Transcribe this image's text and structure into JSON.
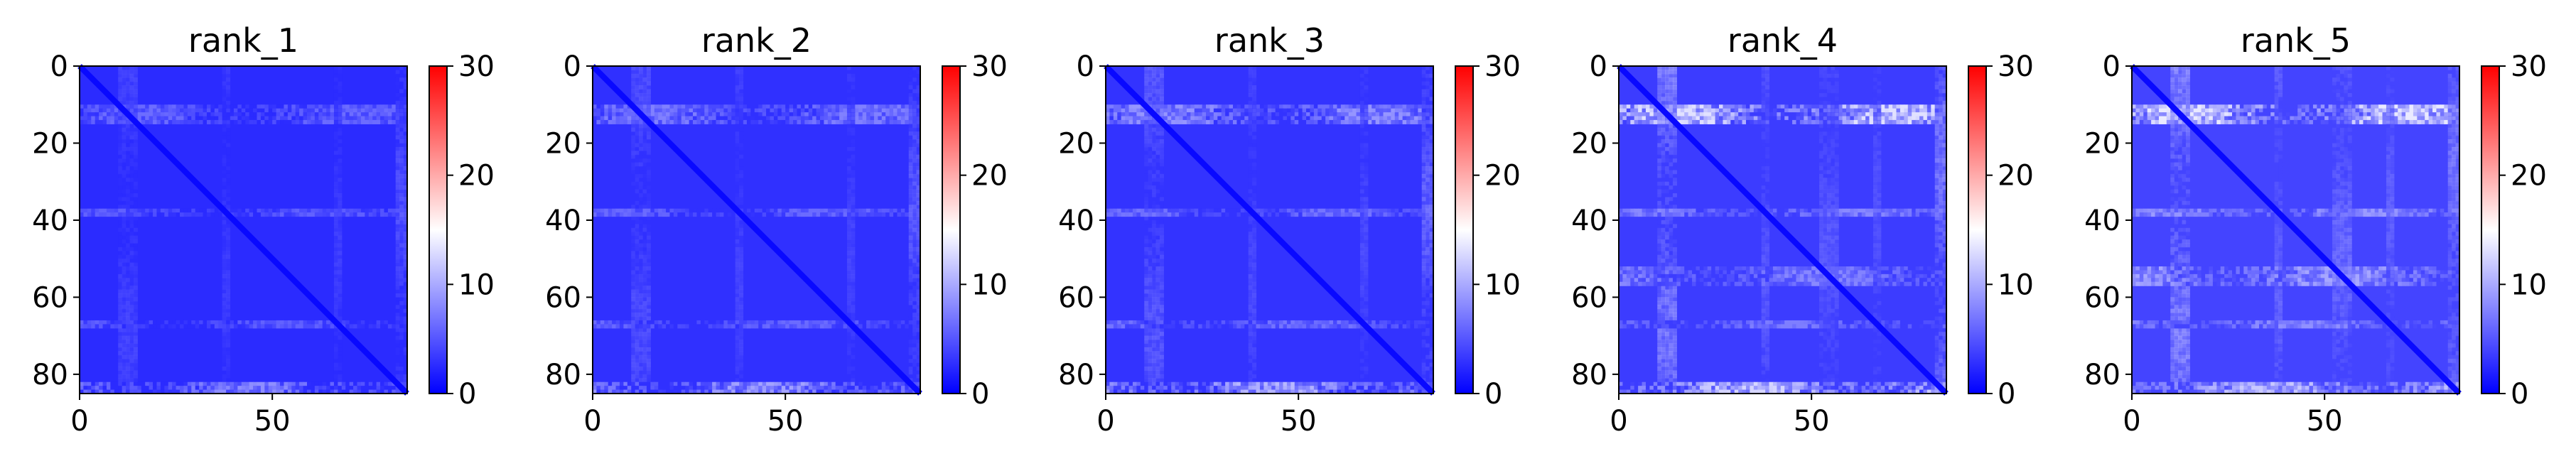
{
  "figure": {
    "colormap": "bwr",
    "colors": {
      "low": "#0000ff",
      "mid": "#ffffff",
      "high": "#ff0000"
    }
  },
  "chart_data": [
    {
      "type": "heatmap",
      "title": "rank_1",
      "matrix_size": 85,
      "xlabel": "",
      "ylabel": "",
      "xlim": [
        0,
        85
      ],
      "ylim": [
        85,
        0
      ],
      "xticks": [
        0,
        50
      ],
      "yticks": [
        0,
        20,
        40,
        60,
        80
      ],
      "xtick_labels": [
        "0",
        "50"
      ],
      "ytick_labels": [
        "0",
        "20",
        "40",
        "60",
        "80"
      ],
      "colorbar": {
        "min": 0,
        "max": 30,
        "ticks": [
          0,
          10,
          20,
          30
        ],
        "tick_labels": [
          "0",
          "10",
          "20",
          "30"
        ]
      },
      "value_summary": {
        "background": 2.5,
        "diagonal": 0.5,
        "bright_rows": [
          [
            10,
            15,
            5.5
          ],
          [
            37,
            39,
            5.0
          ],
          [
            66,
            68,
            5.0
          ],
          [
            82,
            85,
            7.0
          ]
        ]
      }
    },
    {
      "type": "heatmap",
      "title": "rank_2",
      "matrix_size": 85,
      "xlabel": "",
      "ylabel": "",
      "xlim": [
        0,
        85
      ],
      "ylim": [
        85,
        0
      ],
      "xticks": [
        0,
        50
      ],
      "yticks": [
        0,
        20,
        40,
        60,
        80
      ],
      "xtick_labels": [
        "0",
        "50"
      ],
      "ytick_labels": [
        "0",
        "20",
        "40",
        "60",
        "80"
      ],
      "colorbar": {
        "min": 0,
        "max": 30,
        "ticks": [
          0,
          10,
          20,
          30
        ],
        "tick_labels": [
          "0",
          "10",
          "20",
          "30"
        ]
      },
      "value_summary": {
        "background": 2.8,
        "diagonal": 0.5,
        "bright_rows": [
          [
            10,
            15,
            6.5
          ],
          [
            37,
            39,
            5.5
          ],
          [
            66,
            68,
            5.5
          ],
          [
            82,
            85,
            8.0
          ]
        ]
      }
    },
    {
      "type": "heatmap",
      "title": "rank_3",
      "matrix_size": 85,
      "xlabel": "",
      "ylabel": "",
      "xlim": [
        0,
        85
      ],
      "ylim": [
        85,
        0
      ],
      "xticks": [
        0,
        50
      ],
      "yticks": [
        0,
        20,
        40,
        60,
        80
      ],
      "xtick_labels": [
        "0",
        "50"
      ],
      "ytick_labels": [
        "0",
        "20",
        "40",
        "60",
        "80"
      ],
      "colorbar": {
        "min": 0,
        "max": 30,
        "ticks": [
          0,
          10,
          20,
          30
        ],
        "tick_labels": [
          "0",
          "10",
          "20",
          "30"
        ]
      },
      "value_summary": {
        "background": 3.0,
        "diagonal": 0.5,
        "bright_rows": [
          [
            10,
            15,
            7.5
          ],
          [
            37,
            39,
            6.0
          ],
          [
            66,
            68,
            6.0
          ],
          [
            82,
            85,
            9.0
          ]
        ]
      }
    },
    {
      "type": "heatmap",
      "title": "rank_4",
      "matrix_size": 85,
      "xlabel": "",
      "ylabel": "",
      "xlim": [
        0,
        85
      ],
      "ylim": [
        85,
        0
      ],
      "xticks": [
        0,
        50
      ],
      "yticks": [
        0,
        20,
        40,
        60,
        80
      ],
      "xtick_labels": [
        "0",
        "50"
      ],
      "ytick_labels": [
        "0",
        "20",
        "40",
        "60",
        "80"
      ],
      "colorbar": {
        "min": 0,
        "max": 30,
        "ticks": [
          0,
          10,
          20,
          30
        ],
        "tick_labels": [
          "0",
          "10",
          "20",
          "30"
        ]
      },
      "value_summary": {
        "background": 3.5,
        "diagonal": 0.5,
        "bright_rows": [
          [
            10,
            15,
            11.0
          ],
          [
            37,
            39,
            7.0
          ],
          [
            52,
            57,
            7.0
          ],
          [
            66,
            68,
            6.5
          ],
          [
            82,
            85,
            10.5
          ]
        ]
      }
    },
    {
      "type": "heatmap",
      "title": "rank_5",
      "matrix_size": 85,
      "xlabel": "",
      "ylabel": "",
      "xlim": [
        0,
        85
      ],
      "ylim": [
        85,
        0
      ],
      "xticks": [
        0,
        50
      ],
      "yticks": [
        0,
        20,
        40,
        60,
        80
      ],
      "xtick_labels": [
        "0",
        "50"
      ],
      "ytick_labels": [
        "0",
        "20",
        "40",
        "60",
        "80"
      ],
      "colorbar": {
        "min": 0,
        "max": 30,
        "ticks": [
          0,
          10,
          20,
          30
        ],
        "tick_labels": [
          "0",
          "10",
          "20",
          "30"
        ]
      },
      "value_summary": {
        "background": 4.0,
        "diagonal": 0.5,
        "bright_rows": [
          [
            10,
            15,
            11.5
          ],
          [
            37,
            39,
            8.0
          ],
          [
            52,
            57,
            8.5
          ],
          [
            66,
            68,
            7.5
          ],
          [
            82,
            85,
            10.0
          ]
        ]
      }
    }
  ]
}
